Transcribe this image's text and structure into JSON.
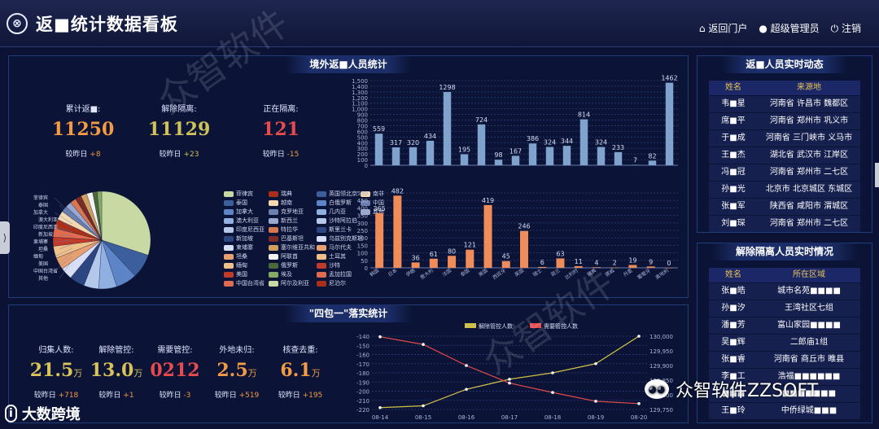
{
  "header": {
    "logo_glyph": "⊗",
    "title": "返■统计数据看板",
    "nav": [
      {
        "icon": "home-icon",
        "glyph": "⌂",
        "label": "返回门户"
      },
      {
        "icon": "user-icon",
        "glyph": "●",
        "label": "超级管理员"
      },
      {
        "icon": "power-icon",
        "glyph": "⏻",
        "label": "注销"
      }
    ]
  },
  "overseas": {
    "title": "境外返■人员统计",
    "stats": [
      {
        "label": "累计返■:",
        "value": "11250",
        "compare_label": "较昨日",
        "delta": "+8",
        "color": "#f39a44"
      },
      {
        "label": "解除隔离:",
        "value": "11129",
        "compare_label": "较昨日",
        "delta": "+23",
        "color": "#cfc25a"
      },
      {
        "label": "正在隔离:",
        "value": "121",
        "compare_label": "较昨日",
        "delta": "-15",
        "color": "#e84b4b"
      }
    ],
    "pie_legend": [
      [
        "菲律宾",
        "瑞典",
        "英国领北京",
        "南非"
      ],
      [
        "泰国",
        "越南",
        "白俄罗斯",
        "中国"
      ],
      [
        "加拿大",
        "克罗地亚",
        "几内亚",
        "其他"
      ],
      [
        "澳大利亚",
        "新西兰",
        "沙特阿拉伯",
        ""
      ],
      [
        "印度尼西亚",
        "特拉华",
        "斯里兰卡",
        ""
      ],
      [
        "新加坡",
        "巴基斯坦",
        "乌兹别克斯坦",
        ""
      ],
      [
        "柬埔寨",
        "塞尔维亚共和",
        "马尔代夫",
        ""
      ],
      [
        "坦桑",
        "阿联酋",
        "土耳其",
        ""
      ],
      [
        "缅甸",
        "俄罗斯",
        "沙特",
        ""
      ],
      [
        "美国",
        "埃及",
        "孟加拉国",
        ""
      ],
      [
        "中国台湾省",
        "阿尔及利亚",
        "尼泊尔",
        ""
      ]
    ],
    "pie_colors": [
      "#c8d9a4",
      "#3d5e9c",
      "#5e84c8",
      "#8fb0e0",
      "#b4c8ec",
      "#2b4680",
      "#d6dff5",
      "#e8a070",
      "#f0c08a",
      "#c23a2a",
      "#e06b4e",
      "#a83018",
      "#f4d8b0",
      "#6a7fb0",
      "#9aa8d0",
      "#d87850",
      "#7b2a2a",
      "#cfa060",
      "#f2f2f2",
      "#4a6a3a",
      "#88aa66"
    ],
    "pie_labels": [
      "菲律宾",
      "泰国",
      "加拿大",
      "澳大利亚",
      "印度尼西亚",
      "新加坡",
      "柬埔寨",
      "坦桑",
      "缅甸",
      "美国",
      "中国台湾省",
      "其他"
    ]
  },
  "chart_data": [
    {
      "type": "bar",
      "values": [
        559,
        317,
        320,
        434,
        1298,
        195,
        724,
        98,
        167,
        386,
        324,
        344,
        814,
        324,
        233,
        7,
        82,
        1462
      ],
      "ylim": [
        0,
        1500
      ],
      "yticks": [
        "0",
        "100",
        "200",
        "300",
        "400",
        "500",
        "600",
        "700",
        "800",
        "900",
        "1,000",
        "1,100",
        "1,200",
        "1,300",
        "1,400",
        "1,500"
      ],
      "color": "#7fa3cc"
    },
    {
      "type": "bar",
      "categories": [
        "韩国",
        "日本",
        "伊朗",
        "意大利",
        "法国",
        "泰国",
        "美国",
        "西班牙",
        "英国",
        "瑞士",
        "荷兰",
        "比利时",
        "瑞典",
        "挪威",
        "丹麦",
        "葡萄牙",
        "奥地利"
      ],
      "values": [
        365,
        482,
        36,
        61,
        80,
        121,
        419,
        45,
        246,
        6,
        63,
        11,
        4,
        2,
        19,
        9,
        0
      ],
      "ylim": [
        0,
        500
      ],
      "yticks": [
        "0",
        "50",
        "100",
        "150",
        "200",
        "250",
        "300",
        "350",
        "400",
        "450",
        "500"
      ],
      "color": "#f08c5a"
    },
    {
      "type": "line",
      "categories": [
        "08-14",
        "08-15",
        "08-16",
        "08-17",
        "08-18",
        "08-19",
        "08-20"
      ],
      "series": [
        {
          "name": "解除管控人数",
          "axis": "left",
          "values": [
            -218,
            -216,
            -198,
            -187,
            -180,
            -170,
            -140
          ],
          "color": "#d0c04a"
        },
        {
          "name": "需要管控人数",
          "axis": "right",
          "values": [
            129998,
            129972,
            129900,
            129840,
            129808,
            129778,
            129770
          ],
          "color": "#e84b4b"
        }
      ],
      "left_ylim": [
        -220,
        -140
      ],
      "left_ticks": [
        "-140",
        "-150",
        "-160",
        "-170",
        "-180",
        "-190",
        "-200",
        "-210",
        "-220"
      ],
      "right_ylim": [
        129750,
        130000
      ],
      "right_ticks": [
        "130,000",
        "129,950",
        "129,900",
        "129,850",
        "129,800",
        "129,750"
      ]
    }
  ],
  "sibao": {
    "title": "\"四包一\"落实统计",
    "stats": [
      {
        "label": "归集人数:",
        "value": "21.5",
        "unit": "万",
        "compare_label": "较昨日",
        "delta": "+718",
        "color": "#d8c25a"
      },
      {
        "label": "解除管控:",
        "value": "13.0",
        "unit": "万",
        "compare_label": "较昨日",
        "delta": "+1",
        "color": "#d8c25a"
      },
      {
        "label": "需要管控:",
        "value": "0212",
        "unit": "",
        "compare_label": "较昨日",
        "delta": "-3",
        "color": "#e84b4b"
      },
      {
        "label": "外地未归:",
        "value": "2.5",
        "unit": "万",
        "compare_label": "较昨日",
        "delta": "+519",
        "color": "#f39a44"
      },
      {
        "label": "核查去重:",
        "value": "6.1",
        "unit": "万",
        "compare_label": "较昨日",
        "delta": "+195",
        "color": "#f39a44"
      }
    ]
  },
  "realtime": {
    "title": "返■人员实时动态",
    "headers": [
      "姓名",
      "来源地"
    ],
    "rows": [
      [
        "韦■星",
        "河南省 许昌市 魏都区"
      ],
      [
        "席■平",
        "河南省 郑州市 巩义市"
      ],
      [
        "于■成",
        "河南省 三门峡市 义马市"
      ],
      [
        "王■杰",
        "湖北省 武汉市 江岸区"
      ],
      [
        "冯■冠",
        "河南省 郑州市 二七区"
      ],
      [
        "孙■光",
        "北京市 北京城区 东城区"
      ],
      [
        "张■军",
        "陕西省 咸阳市 渭城区"
      ],
      [
        "刘■琛",
        "河南省 郑州市 二七区"
      ]
    ]
  },
  "released": {
    "title": "解除隔离人员实时情况",
    "headers": [
      "姓名",
      "所在区域"
    ],
    "rows": [
      [
        "张■皓",
        "城市名苑■■■■"
      ],
      [
        "孙■汐",
        "王湾社区七组"
      ],
      [
        "潘■芳",
        "富山家园■■■■"
      ],
      [
        "吴■辉",
        "二郎庙1组"
      ],
      [
        "张■睿",
        "河南省 商丘市 睢县"
      ],
      [
        "李■工",
        "浩福■■■■■■"
      ],
      [
        "■■■",
        "■■■■■■■"
      ],
      [
        "王■玲",
        "中侨绿城■■■"
      ]
    ]
  },
  "watermarks": {
    "diagonal": "众智软件",
    "wechat": "众智软件ZZSOFT",
    "dsj": "大数跨境",
    "dsj_logo": "i"
  }
}
